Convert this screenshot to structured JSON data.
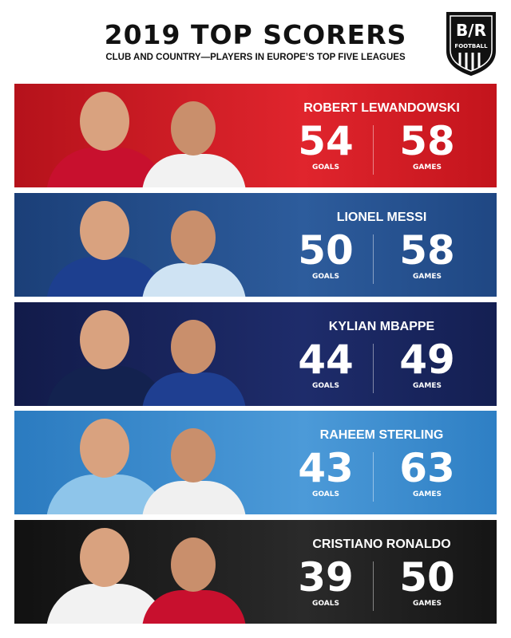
{
  "header": {
    "title": "2019 TOP SCORERS",
    "subtitle": "CLUB AND COUNTRY—PLAYERS IN EUROPE’S TOP FIVE LEAGUES",
    "logo": {
      "mark": "B/R",
      "text": "FOOTBALL"
    }
  },
  "labels": {
    "goals": "GOALS",
    "games": "GAMES"
  },
  "players": [
    {
      "name": "ROBERT LEWANDOWSKI",
      "goals": "54",
      "games": "58"
    },
    {
      "name": "LIONEL MESSI",
      "goals": "50",
      "games": "58"
    },
    {
      "name": "KYLIAN MBAPPE",
      "goals": "44",
      "games": "49"
    },
    {
      "name": "RAHEEM STERLING",
      "goals": "43",
      "games": "63"
    },
    {
      "name": "CRISTIANO RONALDO",
      "goals": "39",
      "games": "50"
    }
  ]
}
